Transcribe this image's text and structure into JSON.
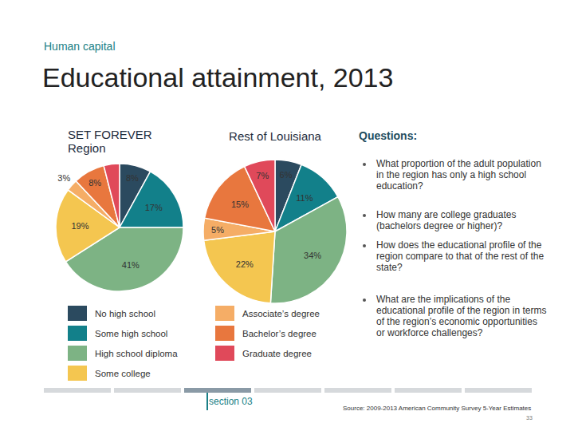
{
  "page": {
    "section_label": "Human capital",
    "title": "Educational attainment, 2013",
    "questions_title": "Questions:",
    "questions": [
      "What proportion of the adult population in the region has only a high school education?",
      "How many are college graduates (bachelors degree or higher)?",
      "How does the educational profile of the region compare to that of the rest of the state?",
      "What are the implications of the educational profile of the region in terms of the region’s economic opportunities or workforce challenges?"
    ],
    "footer": "section 03",
    "source": "Source: 2009-2013 American Community Survey 5-Year Estimates",
    "page_number": "33"
  },
  "chart_data": [
    {
      "type": "pie",
      "title": "SET FOREVER Region",
      "categories": [
        "No high school",
        "Some high school",
        "High school diploma",
        "Some college",
        "Associate’s degree",
        "Bachelor’s degree",
        "Graduate degree"
      ],
      "values": [
        8,
        17,
        41,
        19,
        3,
        8,
        4
      ],
      "value_labels": [
        "8%",
        "17%",
        "41%",
        "19%",
        "3%",
        "8%",
        null
      ],
      "colors": [
        "#2b4a5f",
        "#12808a",
        "#7db384",
        "#f4c650",
        "#f5ad66",
        "#e8773e",
        "#e0495a"
      ],
      "data_labels": true,
      "legend": "bottom"
    },
    {
      "type": "pie",
      "title": "Rest of Louisiana",
      "categories": [
        "No high school",
        "Some high school",
        "High school diploma",
        "Some college",
        "Associate’s degree",
        "Bachelor’s degree",
        "Graduate degree"
      ],
      "values": [
        6,
        11,
        34,
        22,
        5,
        15,
        7
      ],
      "value_labels": [
        "6%",
        "11%",
        "34%",
        "22%",
        "5%",
        "15%",
        "7%"
      ],
      "colors": [
        "#2b4a5f",
        "#12808a",
        "#7db384",
        "#f4c650",
        "#f5ad66",
        "#e8773e",
        "#e0495a"
      ],
      "data_labels": true
    }
  ]
}
